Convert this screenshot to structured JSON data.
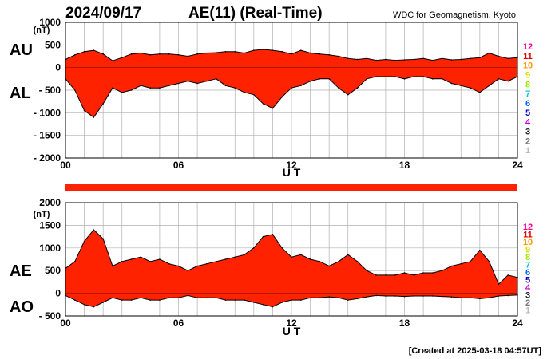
{
  "header": {
    "date": "2024/09/17",
    "title": "AE(11) (Real-Time)",
    "source": "WDC for Geomagnetism, Kyoto"
  },
  "footer": {
    "created": "[Created at 2025-03-18 04:57UT]"
  },
  "colors": {
    "fill": "#ff2200",
    "grid": "#b0b0b0",
    "band": "#ff2200"
  },
  "station_count_legend": [
    {
      "label": "12",
      "color": "#ff0099"
    },
    {
      "label": "11",
      "color": "#dd0000"
    },
    {
      "label": "10",
      "color": "#ff9900"
    },
    {
      "label": "9",
      "color": "#dddd00"
    },
    {
      "label": "8",
      "color": "#99ee00"
    },
    {
      "label": "7",
      "color": "#00cccc"
    },
    {
      "label": "6",
      "color": "#0066ff"
    },
    {
      "label": "5",
      "color": "#0000cc"
    },
    {
      "label": "4",
      "color": "#cc00cc"
    },
    {
      "label": "3",
      "color": "#222222"
    },
    {
      "label": "2",
      "color": "#777777"
    },
    {
      "label": "1",
      "color": "#bbbbbb"
    }
  ],
  "chart_data": [
    {
      "type": "area",
      "name_upper": "AU",
      "name_lower": "AL",
      "unit": "(nT)",
      "xlabel": "U T",
      "x_ticks": [
        "00",
        "06",
        "12",
        "18",
        "24"
      ],
      "xlim": [
        0,
        24
      ],
      "ylim": [
        -2000,
        1000
      ],
      "y_ticks": [
        "1000",
        "500",
        "0",
        "- 500",
        "- 1000",
        "- 1500",
        "- 2000"
      ],
      "x": [
        0,
        0.5,
        1,
        1.5,
        2,
        2.5,
        3,
        3.5,
        4,
        4.5,
        5,
        5.5,
        6,
        6.5,
        7,
        7.5,
        8,
        8.5,
        9,
        9.5,
        10,
        10.5,
        11,
        11.5,
        12,
        12.5,
        13,
        13.5,
        14,
        14.5,
        15,
        15.5,
        16,
        16.5,
        17,
        17.5,
        18,
        18.5,
        19,
        19.5,
        20,
        20.5,
        21,
        21.5,
        22,
        22.5,
        23,
        23.5,
        24
      ],
      "upper": [
        180,
        280,
        350,
        380,
        300,
        150,
        220,
        300,
        320,
        280,
        300,
        300,
        280,
        250,
        300,
        320,
        330,
        350,
        350,
        320,
        380,
        400,
        380,
        350,
        300,
        380,
        320,
        300,
        280,
        250,
        200,
        180,
        200,
        160,
        180,
        160,
        170,
        180,
        200,
        160,
        200,
        170,
        180,
        200,
        220,
        320,
        250,
        200,
        220
      ],
      "lower": [
        -250,
        -500,
        -950,
        -1100,
        -800,
        -450,
        -550,
        -500,
        -400,
        -450,
        -450,
        -400,
        -350,
        -300,
        -350,
        -300,
        -250,
        -400,
        -450,
        -550,
        -600,
        -800,
        -900,
        -650,
        -450,
        -400,
        -300,
        -250,
        -250,
        -450,
        -600,
        -450,
        -250,
        -200,
        -200,
        -200,
        -250,
        -200,
        -200,
        -250,
        -250,
        -350,
        -400,
        -450,
        -550,
        -400,
        -250,
        -300,
        -200
      ]
    },
    {
      "type": "area",
      "name_upper": "AE",
      "name_lower": "AO",
      "unit": "(nT)",
      "xlabel": "U T",
      "x_ticks": [
        "00",
        "06",
        "12",
        "18",
        "24"
      ],
      "xlim": [
        0,
        24
      ],
      "ylim": [
        -500,
        2000
      ],
      "y_ticks": [
        "2000",
        "1500",
        "1000",
        "500",
        "0",
        "- 500"
      ],
      "x": [
        0,
        0.5,
        1,
        1.5,
        2,
        2.5,
        3,
        3.5,
        4,
        4.5,
        5,
        5.5,
        6,
        6.5,
        7,
        7.5,
        8,
        8.5,
        9,
        9.5,
        10,
        10.5,
        11,
        11.5,
        12,
        12.5,
        13,
        13.5,
        14,
        14.5,
        15,
        15.5,
        16,
        16.5,
        17,
        17.5,
        18,
        18.5,
        19,
        19.5,
        20,
        20.5,
        21,
        21.5,
        22,
        22.5,
        23,
        23.5,
        24
      ],
      "upper": [
        550,
        700,
        1150,
        1400,
        1200,
        600,
        700,
        750,
        800,
        700,
        750,
        650,
        600,
        500,
        600,
        650,
        700,
        750,
        800,
        850,
        1000,
        1250,
        1300,
        1000,
        800,
        850,
        750,
        700,
        600,
        700,
        850,
        700,
        500,
        400,
        400,
        400,
        450,
        400,
        450,
        450,
        500,
        600,
        650,
        700,
        950,
        700,
        200,
        400,
        350
      ],
      "lower": [
        -50,
        -150,
        -250,
        -300,
        -200,
        -100,
        -150,
        -150,
        -100,
        -150,
        -150,
        -100,
        -100,
        -50,
        -100,
        -100,
        -100,
        -150,
        -150,
        -150,
        -200,
        -250,
        -300,
        -200,
        -150,
        -150,
        -100,
        -100,
        -80,
        -100,
        -150,
        -120,
        -80,
        -50,
        -60,
        -60,
        -70,
        -60,
        -60,
        -60,
        -70,
        -80,
        -100,
        -100,
        -120,
        -100,
        -60,
        -50,
        -40
      ]
    }
  ]
}
